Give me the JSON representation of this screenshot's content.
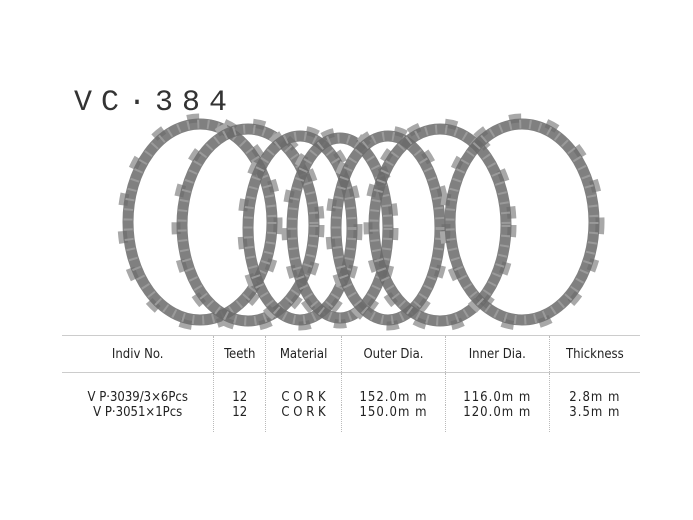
{
  "product_code": "VC·384",
  "colors": {
    "disc": "#6a6a6a",
    "tab": "#a8a8a8"
  },
  "table": {
    "headers": [
      "Indiv No.",
      "Teeth",
      "Material",
      "Outer Dia.",
      "Inner Dia.",
      "Thickness"
    ],
    "rows": [
      [
        "V P·3039/3×6Pcs",
        "12",
        "C O R K",
        "152.0m m",
        "116.0m m",
        "2.8m m"
      ],
      [
        "V P·3051×1Pcs",
        "12",
        "C O R K",
        "150.0m m",
        "120.0m m",
        "3.5m m"
      ]
    ]
  }
}
